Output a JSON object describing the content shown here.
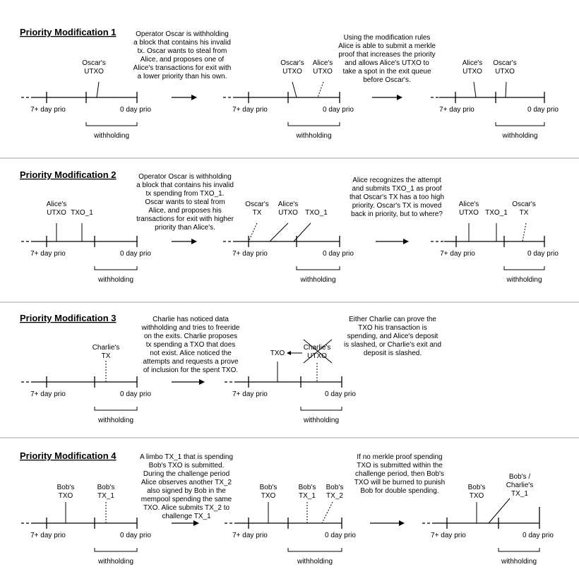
{
  "panels": [
    {
      "title": "Priority Modification 1",
      "desc1": [
        "Operator Oscar is withholding",
        "a block that contains his invalid",
        "tx. Oscar wants to steal from",
        "Alice, and proposes one of",
        "Alice's transactions for exit with",
        "a lower priority than his own."
      ],
      "desc2": [
        "Using the modification rules",
        "Alice is able to submit a merkle",
        "proof that increases the priority",
        "and allows Alice's UTXO to",
        "take a spot in the exit queue",
        "before Oscar's."
      ],
      "tl1": [
        "Oscar's",
        "UTXO"
      ],
      "tl2a": [
        "Oscar's",
        "UTXO"
      ],
      "tl2b": [
        "Alice's",
        "UTXO"
      ],
      "tl3a": [
        "Alice's",
        "UTXO"
      ],
      "tl3b": [
        "Oscar's",
        "UTXO"
      ]
    },
    {
      "title": "Priority Modification 2",
      "desc1": [
        "Operator Oscar is withholding",
        "a block that contains his invalid",
        "tx spending from TXO_1.",
        "Oscar wants to steal from",
        "Alice, and proposes his",
        "transactions for exit with higher",
        "priority than Alice's."
      ],
      "desc2": [
        "Alice recognizes the attempt",
        "and submits TXO_1 as proof",
        "that Oscar's TX has a too high",
        "priority. Oscar's TX is moved",
        "back in priority, but to where?"
      ],
      "tl1a": [
        "Alice's",
        "UTXO"
      ],
      "tl1b": "TXO_1",
      "tl2a": [
        "Oscar's",
        "TX"
      ],
      "tl2b": [
        "Alice's",
        "UTXO"
      ],
      "tl2c": "TXO_1",
      "tl3a": [
        "Alice's",
        "UTXO"
      ],
      "tl3b": "TXO_1",
      "tl3c": [
        "Oscar's",
        "TX"
      ]
    },
    {
      "title": "Priority Modification 3",
      "desc1": [
        "Charlie has noticed data",
        "withholding and tries to freeride",
        "on the exits. Charlie proposes",
        "tx spending a TXO that does",
        "not exist. Alice noticed the",
        "attempts and requests a prove",
        "of inclusion for the spent TXO."
      ],
      "desc2": [
        "Either Charlie can prove the",
        "TXO his transaction is",
        "spending, and Alice's deposit",
        "is slashed, or Charlie's exit and",
        "deposit is slashed."
      ],
      "tl1": [
        "Charlie's",
        "TX"
      ],
      "tl2a": "TXO",
      "tl2b": [
        "Charlie's",
        "UTXO"
      ]
    },
    {
      "title": "Priority Modification 4",
      "desc1": [
        "A limbo TX_1 that is spending",
        "Bob's TXO is submitted.",
        "During the challenge period",
        "Alice observes another TX_2",
        "also signed by Bob in the",
        "mempool spending the same",
        "TXO. Alice submits TX_2 to",
        "challenge TX_1"
      ],
      "desc2": [
        "If no merkle proof spending",
        "TXO is submitted within the",
        "challenge period, then Bob's",
        "TXO will be burned to punish",
        "Bob for double spending."
      ],
      "tl1a": [
        "Bob's",
        "TXO"
      ],
      "tl1b": [
        "Bob's",
        "TX_1"
      ],
      "tl2a": [
        "Bob's",
        "TXO"
      ],
      "tl2b": [
        "Bob's",
        "TX_1"
      ],
      "tl2c": [
        "Bob's",
        "TX_2"
      ],
      "tl3a": [
        "Bob's",
        "TXO"
      ],
      "tl3b": [
        "Bob's /",
        "Charlie's",
        "TX_1"
      ]
    }
  ],
  "axis": {
    "left": "7+ day prio",
    "right": "0 day prio",
    "window": "withholding"
  }
}
